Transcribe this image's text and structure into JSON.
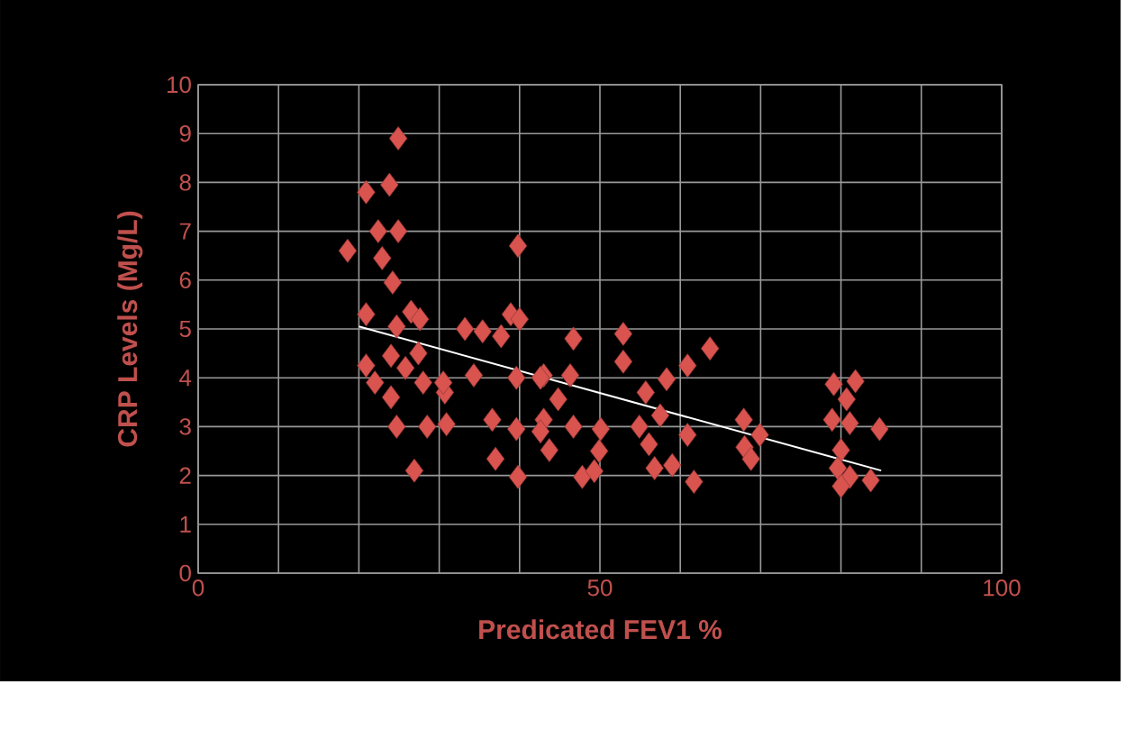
{
  "chart_data": {
    "type": "scatter",
    "xlabel": "Predicated FEV1 %",
    "ylabel": "CRP Levels (Mg/L)",
    "xlim": [
      0,
      100
    ],
    "ylim": [
      0,
      10
    ],
    "xticks": [
      0,
      {
        "value": 10,
        "label": null
      },
      {
        "value": 20,
        "label": null
      },
      {
        "value": 30,
        "label": null
      },
      {
        "value": 40,
        "label": null
      },
      50,
      {
        "value": 60,
        "label": null
      },
      {
        "value": 70,
        "label": null
      },
      {
        "value": 80,
        "label": null
      },
      {
        "value": 90,
        "label": null
      },
      100
    ],
    "yticks": [
      0,
      1,
      2,
      3,
      4,
      5,
      6,
      7,
      8,
      9,
      10
    ],
    "grid": true,
    "marker": "diamond",
    "series": [
      {
        "color": "#d9534f",
        "x": [
          18.6,
          24.9,
          20.9,
          23.8,
          22.4,
          24.9,
          22.9,
          24.2,
          20.9,
          26.5,
          24.7,
          27.6,
          20.9,
          22,
          25.8,
          24,
          28,
          30.7,
          24.7,
          28.5,
          30.9,
          26.9,
          24,
          27.4,
          39.8,
          38.9,
          40,
          37.7,
          46.7,
          52.9,
          52.9,
          63.7,
          60.9,
          58.3,
          55.7,
          39.6,
          46.3,
          43,
          44.8,
          36.6,
          39.6,
          43,
          46.7,
          50.1,
          54.9,
          57.5,
          60.9,
          43.7,
          49.9,
          56.1,
          37,
          39.8,
          47.8,
          49.3,
          56.8,
          59,
          61.7,
          67.9,
          69.9,
          68,
          68.8,
          79.1,
          81.8,
          80.7,
          78.9,
          81.1,
          84.8,
          80,
          79.6,
          81.1,
          83.7,
          80,
          33.2,
          35.4,
          34.3,
          30.5,
          42.6,
          42.6
        ],
        "values": [
          6.6,
          8.9,
          7.8,
          7.95,
          7.0,
          7.0,
          6.45,
          5.95,
          5.3,
          5.35,
          5.05,
          5.2,
          4.25,
          3.9,
          4.2,
          3.6,
          3.9,
          3.7,
          3.0,
          3.0,
          3.05,
          2.1,
          4.45,
          4.5,
          6.7,
          5.3,
          5.2,
          4.85,
          4.8,
          4.9,
          4.33,
          4.6,
          4.25,
          3.97,
          3.7,
          4.0,
          4.05,
          4.05,
          3.56,
          3.14,
          2.95,
          3.14,
          3.0,
          2.95,
          3.0,
          3.23,
          2.83,
          2.52,
          2.5,
          2.64,
          2.34,
          1.97,
          1.97,
          2.09,
          2.15,
          2.21,
          1.87,
          3.14,
          2.83,
          2.58,
          2.34,
          3.87,
          3.93,
          3.56,
          3.14,
          3.07,
          2.95,
          2.52,
          2.15,
          1.97,
          1.9,
          1.78,
          5.0,
          4.95,
          4.05,
          3.9,
          4.0,
          2.9
        ]
      },
      {
        "type": "line",
        "color": "#ffffff",
        "marker": "none",
        "x": [
          20,
          85
        ],
        "values": [
          5.05,
          2.1
        ]
      }
    ]
  }
}
